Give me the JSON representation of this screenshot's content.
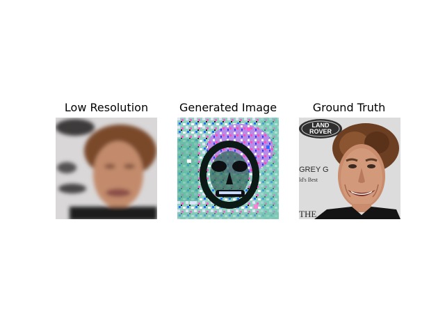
{
  "figure": {
    "panels": [
      {
        "title": "Low Resolution"
      },
      {
        "title": "Generated Image"
      },
      {
        "title": "Ground Truth"
      }
    ],
    "ground_truth_logo": {
      "line1": "LAND",
      "line2": "ROVER"
    },
    "backdrop_text": {
      "line1": "GREY G",
      "line2": "ld's Best",
      "line3": "THE"
    }
  }
}
